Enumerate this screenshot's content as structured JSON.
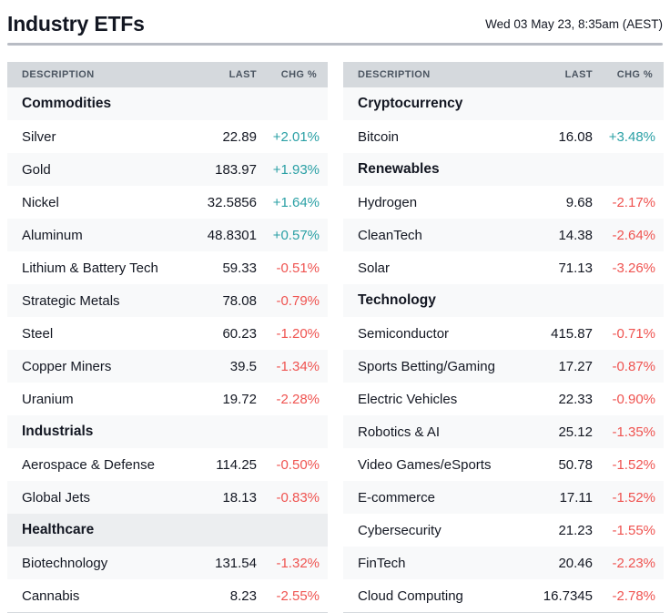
{
  "header": {
    "title": "Industry ETFs",
    "timestamp": "Wed 03 May 23, 8:35am (AEST)"
  },
  "columns": {
    "description": "DESCRIPTION",
    "last": "LAST",
    "chg": "CHG %"
  },
  "colors": {
    "positive_change": "#2aa0a5",
    "negative_change": "#ef5350",
    "column_header_bg": "#d5d9dd",
    "section_header_bg": "#eceef0",
    "zebra_row_bg": "#f8f9fa",
    "text": "#131722"
  },
  "left_table": {
    "rows": [
      {
        "type": "section",
        "label": "Commodities"
      },
      {
        "type": "data",
        "label": "Silver",
        "last": "22.89",
        "chg": "+2.01%",
        "dir": "up"
      },
      {
        "type": "data",
        "label": "Gold",
        "last": "183.97",
        "chg": "+1.93%",
        "dir": "up"
      },
      {
        "type": "data",
        "label": "Nickel",
        "last": "32.5856",
        "chg": "+1.64%",
        "dir": "up"
      },
      {
        "type": "data",
        "label": "Aluminum",
        "last": "48.8301",
        "chg": "+0.57%",
        "dir": "up"
      },
      {
        "type": "data",
        "label": "Lithium & Battery Tech",
        "last": "59.33",
        "chg": "-0.51%",
        "dir": "down"
      },
      {
        "type": "data",
        "label": "Strategic Metals",
        "last": "78.08",
        "chg": "-0.79%",
        "dir": "down"
      },
      {
        "type": "data",
        "label": "Steel",
        "last": "60.23",
        "chg": "-1.20%",
        "dir": "down"
      },
      {
        "type": "data",
        "label": "Copper Miners",
        "last": "39.5",
        "chg": "-1.34%",
        "dir": "down"
      },
      {
        "type": "data",
        "label": "Uranium",
        "last": "19.72",
        "chg": "-2.28%",
        "dir": "down"
      },
      {
        "type": "section",
        "label": "Industrials"
      },
      {
        "type": "data",
        "label": "Aerospace & Defense",
        "last": "114.25",
        "chg": "-0.50%",
        "dir": "down"
      },
      {
        "type": "data",
        "label": "Global Jets",
        "last": "18.13",
        "chg": "-0.83%",
        "dir": "down"
      },
      {
        "type": "section",
        "label": "Healthcare"
      },
      {
        "type": "data",
        "label": "Biotechnology",
        "last": "131.54",
        "chg": "-1.32%",
        "dir": "down"
      },
      {
        "type": "data",
        "label": "Cannabis",
        "last": "8.23",
        "chg": "-2.55%",
        "dir": "down"
      }
    ]
  },
  "right_table": {
    "rows": [
      {
        "type": "section",
        "label": "Cryptocurrency"
      },
      {
        "type": "data",
        "label": "Bitcoin",
        "last": "16.08",
        "chg": "+3.48%",
        "dir": "up"
      },
      {
        "type": "section",
        "label": "Renewables"
      },
      {
        "type": "data",
        "label": "Hydrogen",
        "last": "9.68",
        "chg": "-2.17%",
        "dir": "down"
      },
      {
        "type": "data",
        "label": "CleanTech",
        "last": "14.38",
        "chg": "-2.64%",
        "dir": "down"
      },
      {
        "type": "data",
        "label": "Solar",
        "last": "71.13",
        "chg": "-3.26%",
        "dir": "down"
      },
      {
        "type": "section",
        "label": "Technology"
      },
      {
        "type": "data",
        "label": "Semiconductor",
        "last": "415.87",
        "chg": "-0.71%",
        "dir": "down"
      },
      {
        "type": "data",
        "label": "Sports Betting/Gaming",
        "last": "17.27",
        "chg": "-0.87%",
        "dir": "down"
      },
      {
        "type": "data",
        "label": "Electric Vehicles",
        "last": "22.33",
        "chg": "-0.90%",
        "dir": "down"
      },
      {
        "type": "data",
        "label": "Robotics & AI",
        "last": "25.12",
        "chg": "-1.35%",
        "dir": "down"
      },
      {
        "type": "data",
        "label": "Video Games/eSports",
        "last": "50.78",
        "chg": "-1.52%",
        "dir": "down"
      },
      {
        "type": "data",
        "label": "E-commerce",
        "last": "17.11",
        "chg": "-1.52%",
        "dir": "down"
      },
      {
        "type": "data",
        "label": "Cybersecurity",
        "last": "21.23",
        "chg": "-1.55%",
        "dir": "down"
      },
      {
        "type": "data",
        "label": "FinTech",
        "last": "20.46",
        "chg": "-2.23%",
        "dir": "down"
      },
      {
        "type": "data",
        "label": "Cloud Computing",
        "last": "16.7345",
        "chg": "-2.78%",
        "dir": "down"
      }
    ]
  }
}
